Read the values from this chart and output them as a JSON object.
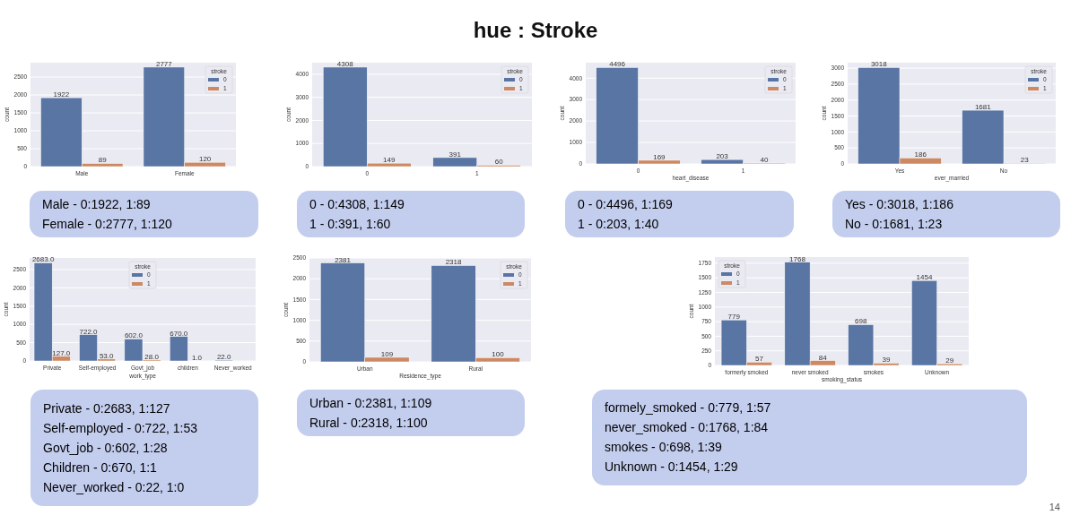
{
  "chart_data": [
    {
      "type": "other",
      "title": "hue : Stroke",
      "annotations": [
        "14"
      ]
    },
    {
      "type": "bar",
      "categories": [
        "Male",
        "Female"
      ],
      "ylabel": "count",
      "legend_title": "stroke",
      "legend": "top right",
      "grid": "y",
      "data_labels": true,
      "ylim": [
        0,
        2900
      ],
      "yticks": [
        0,
        500,
        1000,
        1500,
        2000,
        2500
      ],
      "series": [
        {
          "name": "0",
          "color": "#5975a4",
          "values": [
            1922,
            2777
          ]
        },
        {
          "name": "1",
          "color": "#cc8963",
          "values": [
            89,
            120
          ]
        }
      ]
    },
    {
      "type": "other",
      "annotations": [
        "Male - 0:1922, 1:89",
        "Female - 0:2777, 1:120"
      ]
    },
    {
      "type": "bar",
      "categories": [
        "0",
        "1"
      ],
      "ylabel": "count",
      "legend_title": "stroke",
      "legend": "top right",
      "grid": "y",
      "data_labels": true,
      "ylim": [
        0,
        4500
      ],
      "yticks": [
        0,
        1000,
        2000,
        3000,
        4000
      ],
      "series": [
        {
          "name": "0",
          "color": "#5975a4",
          "values": [
            4308,
            391
          ]
        },
        {
          "name": "1",
          "color": "#cc8963",
          "values": [
            149,
            60
          ]
        }
      ]
    },
    {
      "type": "other",
      "annotations": [
        "0 - 0:4308, 1:149",
        "1 - 0:391, 1:60"
      ]
    },
    {
      "type": "bar",
      "categories": [
        "0",
        "1"
      ],
      "xlabel": "heart_disease",
      "ylabel": "count",
      "legend_title": "stroke",
      "legend": "top right",
      "grid": "y",
      "data_labels": true,
      "ylim": [
        0,
        4720
      ],
      "yticks": [
        0,
        1000,
        2000,
        3000,
        4000
      ],
      "series": [
        {
          "name": "0",
          "color": "#5975a4",
          "values": [
            4496,
            203
          ]
        },
        {
          "name": "1",
          "color": "#cc8963",
          "values": [
            169,
            40
          ]
        }
      ]
    },
    {
      "type": "other",
      "annotations": [
        "0 - 0:4496, 1:169",
        "1 - 0:203, 1:40"
      ]
    },
    {
      "type": "bar",
      "categories": [
        "Yes",
        "No"
      ],
      "xlabel": "ever_married",
      "ylabel": "count",
      "legend_title": "stroke",
      "legend": "top right",
      "grid": "y",
      "data_labels": true,
      "ylim": [
        0,
        3170
      ],
      "yticks": [
        0,
        500,
        1000,
        1500,
        2000,
        2500,
        3000
      ],
      "series": [
        {
          "name": "0",
          "color": "#5975a4",
          "values": [
            3018,
            1681
          ]
        },
        {
          "name": "1",
          "color": "#cc8963",
          "values": [
            186,
            23
          ]
        }
      ]
    },
    {
      "type": "other",
      "annotations": [
        "Yes - 0:3018, 1:186",
        "No - 0:1681, 1:23"
      ]
    },
    {
      "type": "bar",
      "categories": [
        "Private",
        "Self-employed",
        "Govt_job",
        "children",
        "Never_worked"
      ],
      "xlabel": "work_type",
      "ylabel": "count",
      "legend_title": "stroke",
      "legend": "top",
      "grid": "y",
      "ylim": [
        0,
        2817
      ],
      "yticks": [
        0,
        500,
        1000,
        1500,
        2000,
        2500
      ],
      "series": [
        {
          "name": "0",
          "color": "#5975a4",
          "values": [
            2683,
            722,
            602,
            670,
            22
          ],
          "value_labels": [
            "2683.0",
            "722.0",
            "602.0",
            "670.0",
            "22.0"
          ]
        },
        {
          "name": "1",
          "color": "#cc8963",
          "values": [
            127,
            53,
            28,
            1,
            0
          ],
          "value_labels": [
            "127.0",
            "53.0",
            "28.0",
            "1.0",
            null
          ]
        }
      ]
    },
    {
      "type": "other",
      "annotations": [
        "Private - 0:2683, 1:127",
        "Self-employed - 0:722, 1:53",
        "Govt_job - 0:602, 1:28",
        "Children - 0:670, 1:1",
        "Never_worked - 0:22, 1:0"
      ]
    },
    {
      "type": "bar",
      "categories": [
        "Urban",
        "Rural"
      ],
      "xlabel": "Residence_type",
      "ylabel": "count",
      "legend_title": "stroke",
      "legend": "top right",
      "grid": "y",
      "data_labels": true,
      "ylim": [
        0,
        2500
      ],
      "yticks": [
        0,
        500,
        1000,
        1500,
        2000,
        2500
      ],
      "series": [
        {
          "name": "0",
          "color": "#5975a4",
          "values": [
            2381,
            2318
          ]
        },
        {
          "name": "1",
          "color": "#cc8963",
          "values": [
            109,
            100
          ]
        }
      ]
    },
    {
      "type": "other",
      "annotations": [
        "Urban - 0:2381, 1:109",
        "Rural - 0:2318, 1:100"
      ]
    },
    {
      "type": "bar",
      "categories": [
        "formerly smoked",
        "never smoked",
        "smokes",
        "Unknown"
      ],
      "xlabel": "smoking_status",
      "ylabel": "count",
      "legend_title": "stroke",
      "legend": "top left",
      "grid": "y",
      "data_labels": true,
      "ylim": [
        0,
        1856
      ],
      "yticks": [
        0,
        250,
        500,
        750,
        1000,
        1250,
        1500,
        1750
      ],
      "series": [
        {
          "name": "0",
          "color": "#5975a4",
          "values": [
            779,
            1768,
            698,
            1454
          ]
        },
        {
          "name": "1",
          "color": "#cc8963",
          "values": [
            57,
            84,
            39,
            29
          ]
        }
      ]
    },
    {
      "type": "other",
      "annotations": [
        "formely_smoked - 0:779, 1:57",
        "never_smoked - 0:1768, 1:84",
        "smokes - 0:698, 1:39",
        "Unknown - 0:1454, 1:29"
      ]
    }
  ]
}
